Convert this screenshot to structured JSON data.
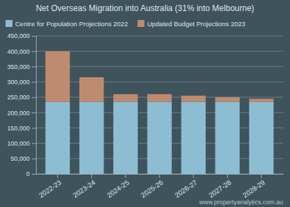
{
  "chart_data": {
    "type": "bar",
    "title": "Net Overseas Migration into Australia (31% into Melbourne)",
    "categories": [
      "2022-23",
      "2023-24",
      "2024-25",
      "2025-26",
      "2026-27",
      "2027-28",
      "2028-29"
    ],
    "series": [
      {
        "name": "Centre for Population Projections 2022",
        "color": "#8dbdd3",
        "values": [
          235000,
          235000,
          235000,
          235000,
          235000,
          235000,
          235000
        ]
      },
      {
        "name": "Updated Budget Projections 2023",
        "color": "#bf8b6f",
        "values": [
          165000,
          80000,
          25000,
          25000,
          20000,
          15000,
          10000
        ]
      }
    ],
    "stacked": true,
    "ylim": [
      0,
      450000
    ],
    "yticks": [
      0,
      {
        "value": 50000,
        "label": "50,000"
      },
      {
        "value": 100000,
        "label": "100,000"
      },
      {
        "value": 150000,
        "label": "150,000"
      },
      {
        "value": 200000,
        "label": "200,000"
      },
      {
        "value": 250000,
        "label": "250,000"
      },
      {
        "value": 300000,
        "label": "300,000"
      },
      {
        "value": 350000,
        "label": "350,000"
      },
      {
        "value": 400000,
        "label": "400,000"
      },
      {
        "value": 450000,
        "label": "450,000"
      }
    ],
    "grid": true,
    "legend": "top",
    "annotations": [
      "www.propertyanalytics.com.au"
    ]
  }
}
